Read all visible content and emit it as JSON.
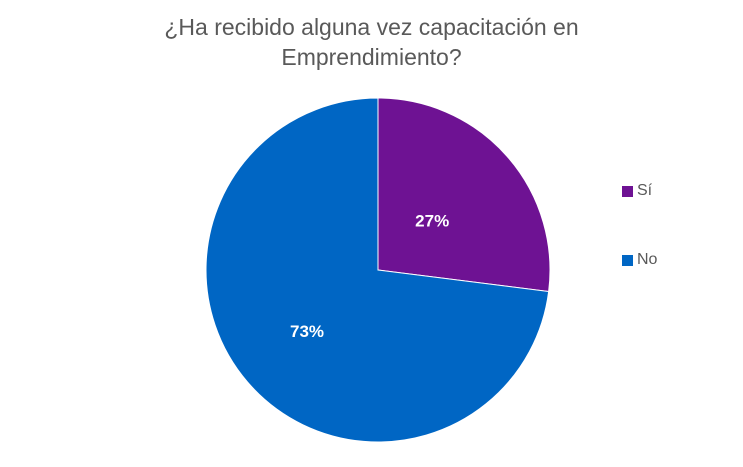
{
  "chart_data": {
    "type": "pie",
    "title_lines": [
      "¿Ha recibido alguna vez capacitación en",
      "Emprendimiento?"
    ],
    "categories": [
      "Sí",
      "No"
    ],
    "values": [
      27,
      73
    ],
    "labels": [
      "27%",
      "73%"
    ],
    "colors": [
      "#6E1293",
      "#0066C4"
    ],
    "legend_position": "right",
    "start_angle": "12 o'clock, clockwise"
  }
}
